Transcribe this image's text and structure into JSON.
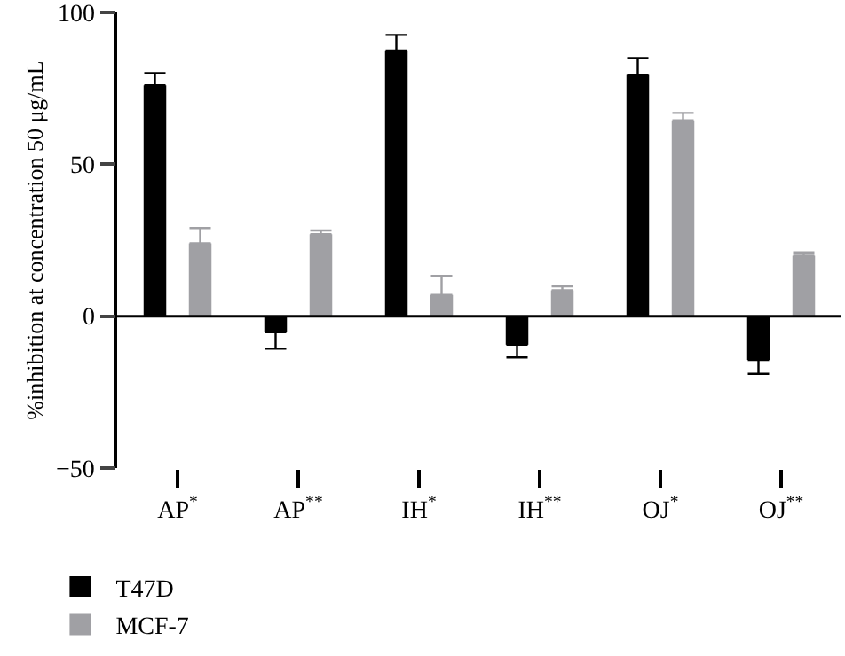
{
  "chart_data": {
    "type": "bar",
    "ylabel": "%inhibition at concentration 50 μg/mL",
    "categories": [
      "AP$^{*}$",
      "AP$^{**}$",
      "IH$^{*}$",
      "IH$^{**}$",
      "OJ$^{*}$",
      "OJ$^{**}$"
    ],
    "series": [
      {
        "name": "T47D",
        "color": "#000000",
        "values": [
          76,
          -5.3,
          87.5,
          -9.4,
          79.4,
          -14.4
        ],
        "errors": [
          [
            76,
            80
          ],
          [
            -10.7,
            -5.3
          ],
          [
            87.5,
            92.6
          ],
          [
            -13.6,
            -9.4
          ],
          [
            79.4,
            85
          ],
          [
            -19,
            -14.4
          ]
        ]
      },
      {
        "name": "MCF-7",
        "color": "#a0a0a4",
        "values": [
          24,
          27,
          7,
          8.5,
          64.5,
          19.9
        ],
        "errors": [
          [
            24,
            29
          ],
          [
            27,
            28.2
          ],
          [
            7,
            13.3
          ],
          [
            8.5,
            9.8
          ],
          [
            64.5,
            66.9
          ],
          [
            19.9,
            21
          ]
        ]
      }
    ],
    "ylim": [
      -50,
      100
    ],
    "yticks": [
      -50,
      0,
      50,
      100
    ],
    "ref_lines": [
      {
        "axis": "y",
        "value": 0,
        "color": "#000000"
      }
    ],
    "legend": "bottom left"
  }
}
